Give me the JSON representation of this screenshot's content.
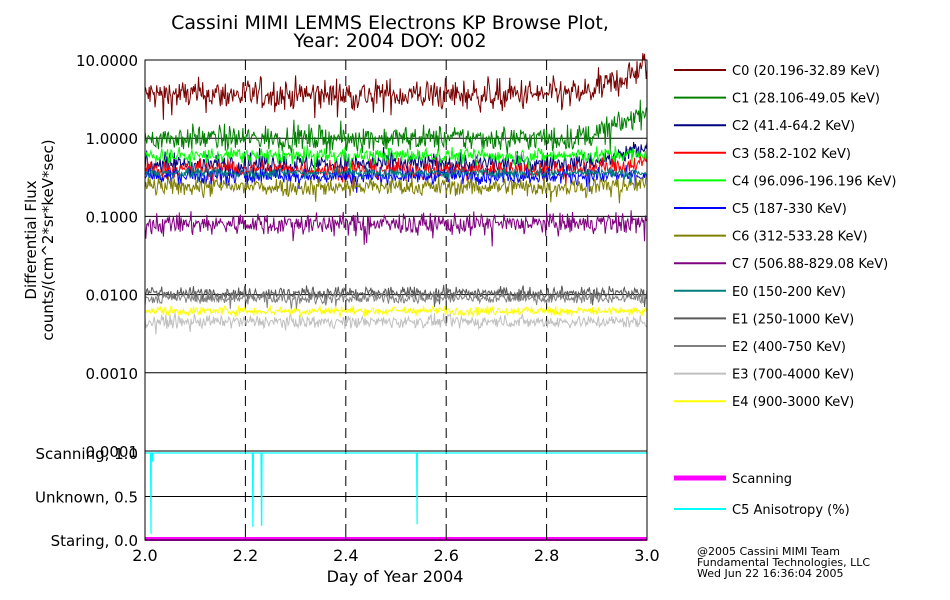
{
  "chart_data": {
    "type": "line",
    "title_line1": "Cassini MIMI LEMMS Electrons KP Browse Plot,",
    "title_line2": "Year: 2004 DOY: 002",
    "ylabel_line1": "Differential Flux",
    "ylabel_line2": "counts/(cm^2*sr*keV*sec)",
    "xlabel": "Day of Year 2004",
    "xlim": [
      2.0,
      3.0
    ],
    "x_ticks": [
      2.0,
      2.2,
      2.4,
      2.6,
      2.8,
      3.0
    ],
    "x_tick_labels": [
      "2.0",
      "2.2",
      "2.4",
      "2.6",
      "2.8",
      "3.0"
    ],
    "ylim_log": [
      0.0001,
      10
    ],
    "y_ticks": [
      10,
      1,
      0.1,
      0.01,
      0.001,
      0.0001
    ],
    "y_tick_labels": [
      "10.0000",
      "1.0000",
      "0.1000",
      "0.0100",
      "0.0010",
      "0.0001"
    ],
    "series": [
      {
        "name": "C0 (20.196-32.89 KeV)",
        "color": "#7a0000",
        "level": 3.6,
        "end_level": 8.5,
        "noise": 0.1
      },
      {
        "name": "C1 (28.106-49.05 KeV)",
        "color": "#008000",
        "level": 1.0,
        "end_level": 2.3,
        "noise": 0.08
      },
      {
        "name": "C2 (41.4-64.2 KeV)",
        "color": "#00007f",
        "level": 0.47,
        "end_level": 0.75,
        "noise": 0.07
      },
      {
        "name": "C3 (58.2-102 KeV)",
        "color": "#ff0000",
        "level": 0.4,
        "end_level": 0.5,
        "noise": 0.06
      },
      {
        "name": "C4 (96.096-196.196 KeV)",
        "color": "#00ff00",
        "level": 0.6,
        "end_level": 0.62,
        "noise": 0.05
      },
      {
        "name": "C5 (187-330 KeV)",
        "color": "#0000ff",
        "level": 0.33,
        "end_level": 0.33,
        "noise": 0.05
      },
      {
        "name": "C6 (312-533.28 KeV)",
        "color": "#808000",
        "level": 0.24,
        "end_level": 0.26,
        "noise": 0.06
      },
      {
        "name": "C7 (506.88-829.08 KeV)",
        "color": "#800080",
        "level": 0.08,
        "end_level": 0.085,
        "noise": 0.07
      },
      {
        "name": "E0 (150-200 KeV)",
        "color": "#007f7f",
        "level": 0.36,
        "end_level": 0.36,
        "noise": 0.03
      },
      {
        "name": "E1 (250-1000 KeV)",
        "color": "#595959",
        "level": 0.0105,
        "end_level": 0.0105,
        "noise": 0.04
      },
      {
        "name": "E2 (400-750 KeV)",
        "color": "#808080",
        "level": 0.009,
        "end_level": 0.009,
        "noise": 0.035
      },
      {
        "name": "E3 (700-4000 KeV)",
        "color": "#c0c0c0",
        "level": 0.0045,
        "end_level": 0.0045,
        "noise": 0.04
      },
      {
        "name": "E4 (900-3000 KeV)",
        "color": "#ffff00",
        "level": 0.0062,
        "end_level": 0.006,
        "noise": 0.03
      }
    ],
    "bottom_panel": {
      "y_tick_labels": [
        "Scanning, 1.0",
        "Unknown, 0.5",
        "Staring, 0.0"
      ],
      "y_ticks": [
        1.0,
        0.5,
        0.0
      ],
      "ylim": [
        0.0,
        1.0
      ],
      "series": [
        {
          "name": "Scanning",
          "color": "#ff00ff",
          "constant": 0.0
        },
        {
          "name": "C5 Anisotropy (%)",
          "color": "#00ffff",
          "base": 1.0,
          "dips": [
            {
              "x": 2.012,
              "y": 0.07
            },
            {
              "x": 2.015,
              "y": 0.9
            },
            {
              "x": 2.215,
              "y": 0.15
            },
            {
              "x": 2.232,
              "y": 0.17
            },
            {
              "x": 2.542,
              "y": 0.18
            }
          ]
        }
      ]
    },
    "footer_line1": "@2005 Cassini MIMI Team",
    "footer_line2": "Fundamental Technologies, LLC",
    "footer_line3": "Wed Jun 22 16:36:04 2005"
  }
}
